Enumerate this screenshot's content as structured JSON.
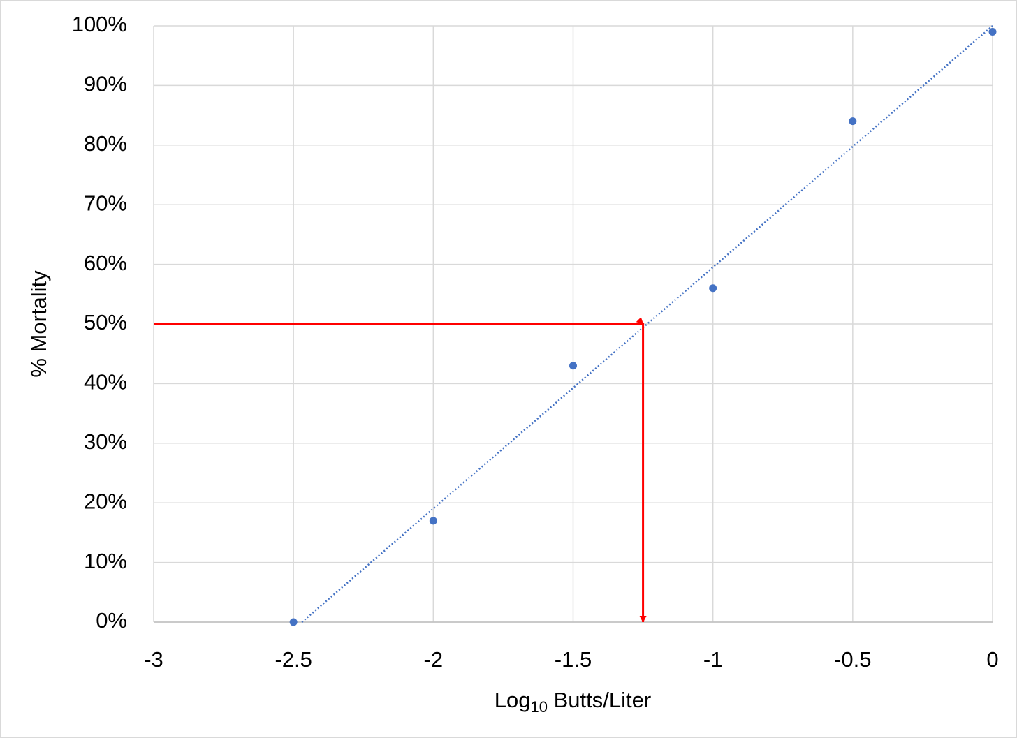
{
  "chart_data": {
    "type": "scatter",
    "y_label": "% Mortality",
    "x_label": {
      "main": "Log",
      "subscript": "10",
      "rest": " Butts/Liter"
    },
    "xlim": [
      -3,
      0
    ],
    "xticks": [
      -3,
      -2.5,
      -2,
      -1.5,
      -1,
      -0.5,
      0
    ],
    "ylim": [
      0,
      100
    ],
    "yticks": [
      {
        "value": 0,
        "label": "0%"
      },
      {
        "value": 10,
        "label": "10%"
      },
      {
        "value": 20,
        "label": "20%"
      },
      {
        "value": 30,
        "label": "30%"
      },
      {
        "value": 40,
        "label": "40%"
      },
      {
        "value": 50,
        "label": "50%"
      },
      {
        "value": 60,
        "label": "60%"
      },
      {
        "value": 70,
        "label": "70%"
      },
      {
        "value": 80,
        "label": "80%"
      },
      {
        "value": 90,
        "label": "90%"
      },
      {
        "value": 100,
        "label": "100%"
      }
    ],
    "grid": true,
    "points": {
      "color": "#4472c4",
      "x": [
        -2.5,
        -2,
        -1.5,
        -1,
        -0.5,
        0
      ],
      "y": [
        0,
        17,
        43,
        56,
        84,
        99
      ]
    },
    "trendline": {
      "color": "#4472c4",
      "style": "dotted",
      "x": [
        -2.47,
        0
      ],
      "y": [
        0,
        100
      ]
    },
    "arrows": {
      "color": "#ff0000",
      "x": [
        -3,
        -1.25,
        -1.25
      ],
      "y": [
        50,
        50,
        0
      ]
    }
  }
}
